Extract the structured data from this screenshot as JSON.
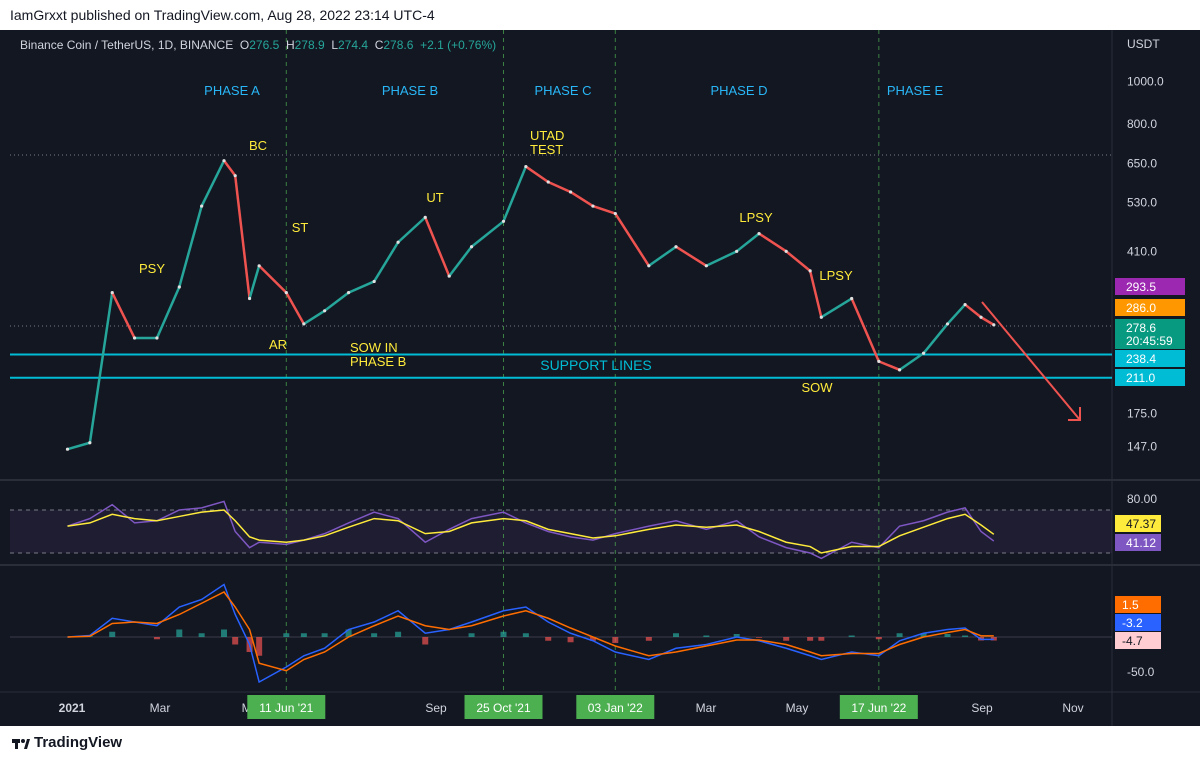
{
  "header": {
    "published": "IamGrxxt published on TradingView.com, Aug 28, 2022 23:14 UTC-4"
  },
  "legend": {
    "symbol": "Binance Coin / TetherUS, 1D, BINANCE",
    "o_label": "O",
    "o": "276.5",
    "h_label": "H",
    "h": "278.9",
    "l_label": "L",
    "l": "274.4",
    "c_label": "C",
    "c": "278.6",
    "change": "+2.1 (+0.76%)"
  },
  "footer": {
    "brand": "TradingView"
  },
  "colors": {
    "background": "#131722",
    "up": "#26a69a",
    "down": "#ef5350",
    "support": "#00bcd4",
    "rsi": "#7e57c2",
    "rsi_ma": "#ffeb3b",
    "macd": "#2962ff",
    "signal": "#ff6d00",
    "phase_label": "#29b6f6",
    "wyckoff_label": "#ffeb3b"
  },
  "chart_data": [
    {
      "type": "line",
      "series_kind": "candlestick",
      "unit": "USDT",
      "scale": "log",
      "ylim": [
        130,
        1120
      ],
      "x": [
        "2021-01-25",
        "2021-02-08",
        "2021-02-22",
        "2021-03-08",
        "2021-03-22",
        "2021-04-05",
        "2021-04-19",
        "2021-05-03",
        "2021-05-10",
        "2021-05-19",
        "2021-05-25",
        "2021-06-11",
        "2021-06-22",
        "2021-07-05",
        "2021-07-20",
        "2021-08-05",
        "2021-08-20",
        "2021-09-06",
        "2021-09-21",
        "2021-10-05",
        "2021-10-25",
        "2021-11-08",
        "2021-11-22",
        "2021-12-06",
        "2021-12-20",
        "2022-01-03",
        "2022-01-24",
        "2022-02-10",
        "2022-03-01",
        "2022-03-20",
        "2022-04-03",
        "2022-04-20",
        "2022-05-05",
        "2022-05-12",
        "2022-05-31",
        "2022-06-17",
        "2022-06-30",
        "2022-07-15",
        "2022-07-30",
        "2022-08-10",
        "2022-08-20",
        "2022-08-28"
      ],
      "y": [
        145,
        150,
        330,
        260,
        260,
        340,
        520,
        660,
        610,
        320,
        380,
        330,
        280,
        300,
        330,
        350,
        430,
        490,
        360,
        420,
        480,
        640,
        590,
        560,
        520,
        500,
        380,
        420,
        380,
        410,
        450,
        410,
        370,
        290,
        320,
        230,
        220,
        240,
        280,
        310,
        290,
        278.6
      ],
      "yticks": [
        "1000.0",
        "800.0",
        "650.0",
        "530.0",
        "410.0",
        "175.0",
        "147.0"
      ],
      "price_tags": [
        {
          "value": "293.5",
          "color": "#9c27b0"
        },
        {
          "value": "286.0",
          "color": "#ff9800"
        },
        {
          "value": "278.6",
          "color": "#089981",
          "extra": "20:45:59"
        },
        {
          "value": "238.4",
          "color": "#00bcd4"
        },
        {
          "value": "211.0",
          "color": "#00bcd4"
        }
      ],
      "support_lines": [
        238.4,
        211.0
      ],
      "support_label": "SUPPORT LINES",
      "phases": [
        "PHASE A",
        "PHASE B",
        "PHASE C",
        "PHASE D",
        "PHASE E"
      ],
      "annotations": [
        "PSY",
        "BC",
        "AR",
        "ST",
        "SOW IN PHASE B",
        "UT",
        "UTAD TEST",
        "LPSY",
        "LPSY",
        "SOW"
      ],
      "axis_unit": "USDT"
    },
    {
      "type": "line",
      "name": "RSI",
      "ylim": [
        0,
        100
      ],
      "yticks": [
        "80.00"
      ],
      "rsi_values": [
        55,
        62,
        75,
        58,
        60,
        70,
        72,
        78,
        50,
        35,
        40,
        38,
        42,
        48,
        58,
        68,
        62,
        40,
        52,
        62,
        68,
        58,
        50,
        45,
        42,
        48,
        55,
        60,
        52,
        60,
        45,
        35,
        30,
        25,
        40,
        35,
        55,
        60,
        68,
        72,
        50,
        41.12
      ],
      "ma_values": [
        55,
        58,
        66,
        62,
        60,
        64,
        68,
        70,
        60,
        45,
        42,
        40,
        42,
        46,
        54,
        62,
        60,
        48,
        50,
        58,
        62,
        60,
        52,
        48,
        44,
        46,
        52,
        56,
        54,
        56,
        50,
        40,
        36,
        30,
        36,
        36,
        46,
        54,
        62,
        66,
        56,
        47.37
      ],
      "tags": [
        {
          "value": "47.37",
          "color": "#ffeb3b"
        },
        {
          "value": "41.12",
          "color": "#7e57c2"
        }
      ]
    },
    {
      "type": "line",
      "name": "MACD",
      "yticks": [
        "-50.0"
      ],
      "macd_values": [
        0,
        2,
        25,
        20,
        15,
        40,
        50,
        70,
        30,
        -10,
        -60,
        -40,
        -25,
        -15,
        10,
        20,
        35,
        5,
        10,
        20,
        35,
        40,
        20,
        5,
        -5,
        -20,
        -30,
        -15,
        -10,
        0,
        -5,
        -15,
        -25,
        -30,
        -20,
        -25,
        -5,
        5,
        10,
        12,
        -3.2,
        -3.2
      ],
      "signal_values": [
        0,
        1,
        18,
        20,
        18,
        30,
        45,
        60,
        40,
        10,
        -35,
        -45,
        -30,
        -20,
        0,
        15,
        28,
        15,
        10,
        15,
        28,
        35,
        25,
        12,
        0,
        -12,
        -25,
        -20,
        -12,
        -4,
        -4,
        -10,
        -20,
        -25,
        -22,
        -22,
        -10,
        0,
        6,
        10,
        1.5,
        1.5
      ],
      "tags": [
        {
          "value": "1.5",
          "color": "#ff6d00"
        },
        {
          "value": "-3.2",
          "color": "#2962ff"
        },
        {
          "value": "-4.7",
          "color": "#ffcdd2"
        }
      ]
    }
  ],
  "time_axis": {
    "labels": [
      "2021",
      "Mar",
      "May",
      "Sep",
      "Mar",
      "May",
      "Sep",
      "Nov"
    ],
    "highlighted": [
      "11 Jun '21",
      "25 Oct '21",
      "03 Jan '22",
      "17 Jun '22"
    ]
  }
}
